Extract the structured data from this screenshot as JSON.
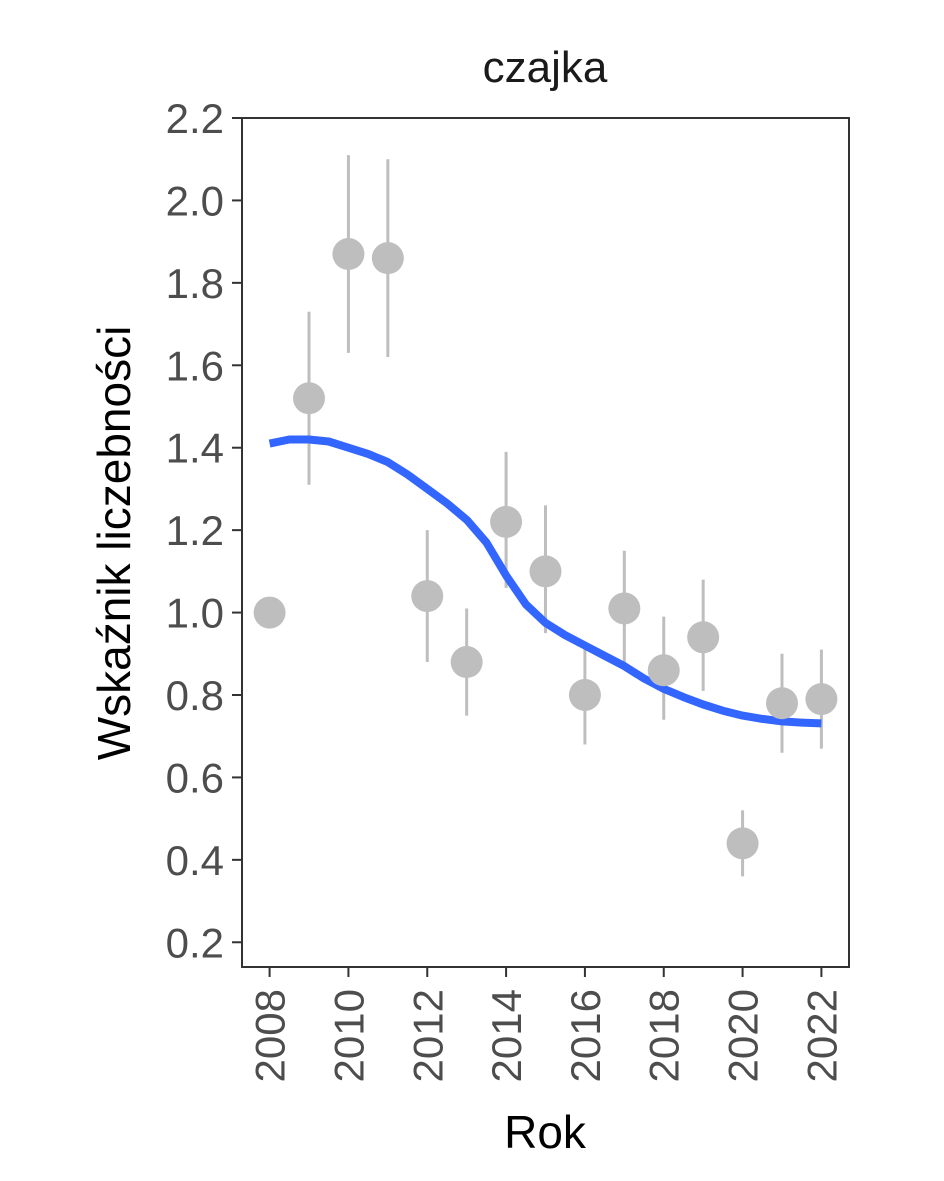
{
  "chart_data": {
    "type": "scatter",
    "title": "czajka",
    "xlabel": "Rok",
    "ylabel": "Wskaźnik liczebności",
    "xlim": [
      2007.3,
      2022.7
    ],
    "ylim": [
      0.14,
      2.2
    ],
    "x_ticks": [
      2008,
      2010,
      2012,
      2014,
      2016,
      2018,
      2020,
      2022
    ],
    "y_ticks": [
      0.2,
      0.4,
      0.6,
      0.8,
      1.0,
      1.2,
      1.4,
      1.6,
      1.8,
      2.0,
      2.2
    ],
    "y_tick_labels": [
      "0.2",
      "0.4",
      "0.6",
      "0.8",
      "1.0",
      "1.2",
      "1.4",
      "1.6",
      "1.8",
      "2.0",
      "2.2"
    ],
    "grid": false,
    "points": {
      "x": [
        2008,
        2009,
        2010,
        2011,
        2012,
        2013,
        2014,
        2015,
        2016,
        2017,
        2018,
        2019,
        2020,
        2021,
        2022
      ],
      "y": [
        1.0,
        1.52,
        1.87,
        1.86,
        1.04,
        0.88,
        1.22,
        1.1,
        0.8,
        1.01,
        0.86,
        0.94,
        0.44,
        0.78,
        0.79
      ],
      "lower": [
        null,
        1.31,
        1.63,
        1.62,
        0.88,
        0.75,
        1.06,
        0.95,
        0.68,
        0.87,
        0.74,
        0.81,
        0.36,
        0.66,
        0.67
      ],
      "upper": [
        null,
        1.73,
        2.11,
        2.1,
        1.2,
        1.01,
        1.39,
        1.26,
        0.92,
        1.15,
        0.99,
        1.08,
        0.52,
        0.9,
        0.91
      ]
    },
    "trend": {
      "x": [
        2008,
        2008.5,
        2009,
        2009.5,
        2010,
        2010.5,
        2011,
        2011.5,
        2012,
        2012.5,
        2013,
        2013.5,
        2014,
        2014.5,
        2015,
        2015.5,
        2016,
        2016.5,
        2017,
        2017.5,
        2018,
        2018.5,
        2019,
        2019.5,
        2020,
        2020.5,
        2021,
        2021.5,
        2022
      ],
      "y": [
        1.41,
        1.42,
        1.42,
        1.415,
        1.4,
        1.385,
        1.365,
        1.335,
        1.3,
        1.265,
        1.225,
        1.17,
        1.09,
        1.02,
        0.975,
        0.945,
        0.92,
        0.895,
        0.87,
        0.84,
        0.815,
        0.795,
        0.777,
        0.762,
        0.75,
        0.742,
        0.736,
        0.733,
        0.731
      ]
    },
    "colors": {
      "points": "#bebebe",
      "errorbars": "#bebebe",
      "trend": "#3366ff",
      "axis": "#333333",
      "tick_labels": "#4d4d4d"
    }
  }
}
